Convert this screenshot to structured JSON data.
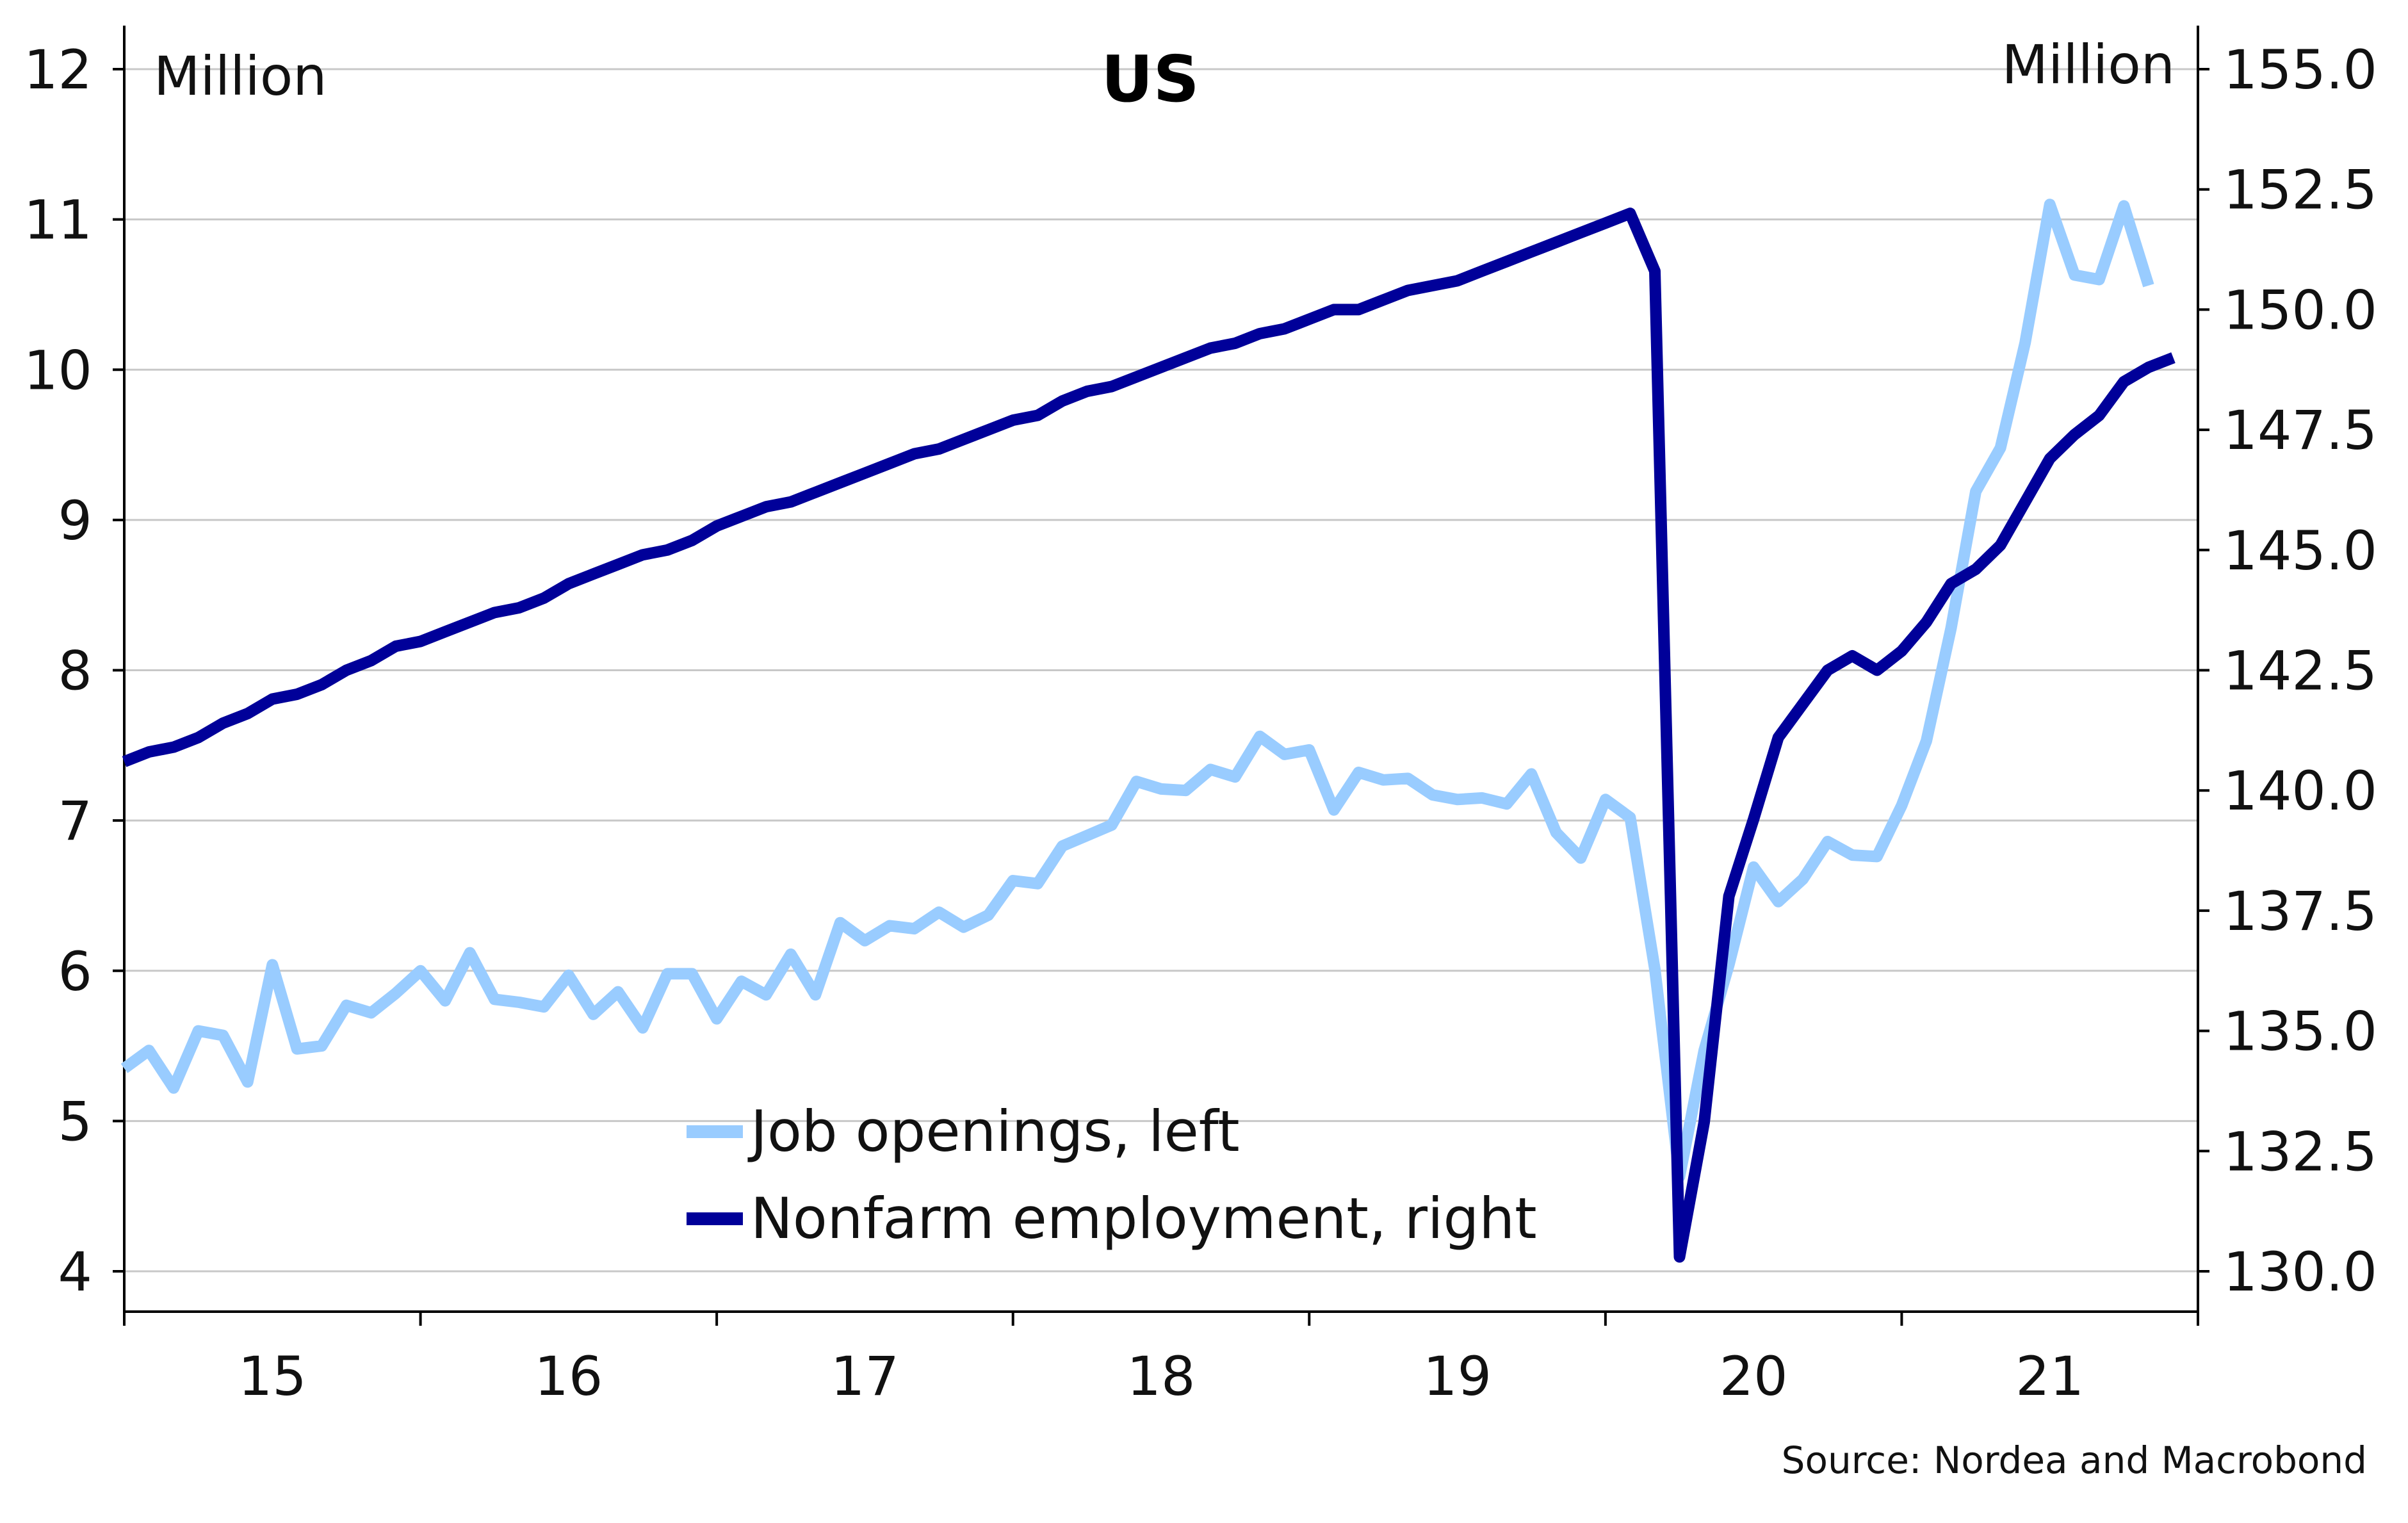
{
  "chart_data": {
    "type": "line",
    "title": "US",
    "y_left_unit": "Million",
    "y_right_unit": "Million",
    "source": "Source: Nordea and Macrobond",
    "x_axis": {
      "start_year": 2015,
      "end_year": 2022,
      "tick_labels": [
        "15",
        "16",
        "17",
        "18",
        "19",
        "20",
        "21"
      ]
    },
    "y_left": {
      "min": 4,
      "max": 12,
      "ticks": [
        4,
        5,
        6,
        7,
        8,
        9,
        10,
        11,
        12
      ],
      "tick_labels": [
        "4",
        "5",
        "6",
        "7",
        "8",
        "9",
        "10",
        "11",
        "12"
      ]
    },
    "y_right": {
      "min": 130,
      "max": 155,
      "ticks": [
        130,
        132.5,
        135,
        137.5,
        140,
        142.5,
        145,
        147.5,
        150,
        152.5,
        155
      ],
      "tick_labels": [
        "130.0",
        "132.5",
        "135.0",
        "137.5",
        "140.0",
        "142.5",
        "145.0",
        "147.5",
        "150.0",
        "152.5",
        "155.0"
      ]
    },
    "grid": true,
    "legend_position": "bottom-center",
    "series": [
      {
        "name": "Job openings, left",
        "axis": "left",
        "color": "#99ccff",
        "x": [
          "2015-01",
          "2015-02",
          "2015-03",
          "2015-04",
          "2015-05",
          "2015-06",
          "2015-07",
          "2015-08",
          "2015-09",
          "2015-10",
          "2015-11",
          "2015-12",
          "2016-01",
          "2016-02",
          "2016-03",
          "2016-04",
          "2016-05",
          "2016-06",
          "2016-07",
          "2016-08",
          "2016-09",
          "2016-10",
          "2016-11",
          "2016-12",
          "2017-01",
          "2017-02",
          "2017-03",
          "2017-04",
          "2017-05",
          "2017-06",
          "2017-07",
          "2017-08",
          "2017-09",
          "2017-10",
          "2017-11",
          "2017-12",
          "2018-01",
          "2018-02",
          "2018-03",
          "2018-04",
          "2018-05",
          "2018-06",
          "2018-07",
          "2018-08",
          "2018-09",
          "2018-10",
          "2018-11",
          "2018-12",
          "2019-01",
          "2019-02",
          "2019-03",
          "2019-04",
          "2019-05",
          "2019-06",
          "2019-07",
          "2019-08",
          "2019-09",
          "2019-10",
          "2019-11",
          "2019-12",
          "2020-01",
          "2020-02",
          "2020-03",
          "2020-04",
          "2020-05",
          "2020-06",
          "2020-07",
          "2020-08",
          "2020-09",
          "2020-10",
          "2020-11",
          "2020-12",
          "2021-01",
          "2021-02",
          "2021-03",
          "2021-04",
          "2021-05",
          "2021-06",
          "2021-07",
          "2021-08",
          "2021-09",
          "2021-10",
          "2021-11"
        ],
        "values": [
          5.35,
          5.47,
          5.22,
          5.6,
          5.57,
          5.26,
          6.04,
          5.48,
          5.5,
          5.77,
          5.72,
          5.85,
          6.0,
          5.8,
          6.12,
          5.81,
          5.79,
          5.76,
          5.97,
          5.71,
          5.86,
          5.62,
          5.98,
          5.98,
          5.68,
          5.93,
          5.84,
          6.11,
          5.84,
          6.32,
          6.2,
          6.3,
          6.28,
          6.39,
          6.29,
          6.37,
          6.6,
          6.58,
          6.83,
          6.9,
          6.97,
          7.26,
          7.21,
          7.2,
          7.34,
          7.29,
          7.56,
          7.44,
          7.47,
          7.07,
          7.32,
          7.27,
          7.28,
          7.17,
          7.14,
          7.15,
          7.11,
          7.31,
          6.92,
          6.75,
          7.14,
          7.02,
          6.01,
          4.63,
          5.47,
          6.04,
          6.69,
          6.46,
          6.61,
          6.86,
          6.77,
          6.76,
          7.1,
          7.53,
          8.28,
          9.19,
          9.48,
          10.18,
          11.1,
          10.63,
          10.6,
          11.09,
          10.56
        ]
      },
      {
        "name": "Nonfarm employment, right",
        "axis": "right",
        "color": "#000099",
        "x": [
          "2015-01",
          "2015-02",
          "2015-03",
          "2015-04",
          "2015-05",
          "2015-06",
          "2015-07",
          "2015-08",
          "2015-09",
          "2015-10",
          "2015-11",
          "2015-12",
          "2016-01",
          "2016-02",
          "2016-03",
          "2016-04",
          "2016-05",
          "2016-06",
          "2016-07",
          "2016-08",
          "2016-09",
          "2016-10",
          "2016-11",
          "2016-12",
          "2017-01",
          "2017-02",
          "2017-03",
          "2017-04",
          "2017-05",
          "2017-06",
          "2017-07",
          "2017-08",
          "2017-09",
          "2017-10",
          "2017-11",
          "2017-12",
          "2018-01",
          "2018-02",
          "2018-03",
          "2018-04",
          "2018-05",
          "2018-06",
          "2018-07",
          "2018-08",
          "2018-09",
          "2018-10",
          "2018-11",
          "2018-12",
          "2019-01",
          "2019-02",
          "2019-03",
          "2019-04",
          "2019-05",
          "2019-06",
          "2019-07",
          "2019-08",
          "2019-09",
          "2019-10",
          "2019-11",
          "2019-12",
          "2020-01",
          "2020-02",
          "2020-03",
          "2020-04",
          "2020-05",
          "2020-06",
          "2020-07",
          "2020-08",
          "2020-09",
          "2020-10",
          "2020-11",
          "2020-12",
          "2021-01",
          "2021-02",
          "2021-03",
          "2021-04",
          "2021-05",
          "2021-06",
          "2021-07",
          "2021-08",
          "2021-09",
          "2021-10",
          "2021-11",
          "2021-12"
        ],
        "values": [
          140.6,
          140.8,
          140.9,
          141.1,
          141.4,
          141.6,
          141.9,
          142.0,
          142.2,
          142.5,
          142.7,
          143.0,
          143.1,
          143.3,
          143.5,
          143.7,
          143.8,
          144.0,
          144.3,
          144.5,
          144.7,
          144.9,
          145.0,
          145.2,
          145.5,
          145.7,
          145.9,
          146.0,
          146.2,
          146.4,
          146.6,
          146.8,
          147.0,
          147.1,
          147.3,
          147.5,
          147.7,
          147.8,
          148.1,
          148.3,
          148.4,
          148.6,
          148.8,
          149.0,
          149.2,
          149.3,
          149.5,
          149.6,
          149.8,
          150.0,
          150.0,
          150.2,
          150.4,
          150.5,
          150.6,
          150.8,
          151.0,
          151.2,
          151.4,
          151.6,
          151.8,
          152.0,
          150.8,
          130.3,
          133.1,
          137.8,
          139.4,
          141.1,
          141.8,
          142.5,
          142.8,
          142.5,
          142.9,
          143.5,
          144.3,
          144.6,
          145.1,
          146.0,
          146.9,
          147.4,
          147.8,
          148.5,
          148.8,
          149.0
        ]
      }
    ]
  }
}
